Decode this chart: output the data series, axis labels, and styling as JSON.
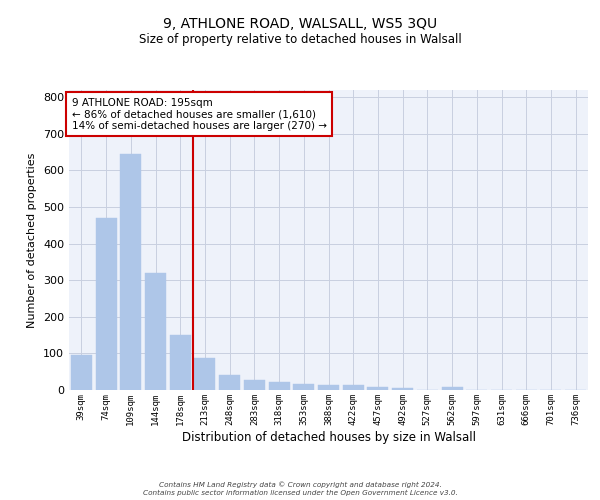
{
  "title1": "9, ATHLONE ROAD, WALSALL, WS5 3QU",
  "title2": "Size of property relative to detached houses in Walsall",
  "xlabel": "Distribution of detached houses by size in Walsall",
  "ylabel": "Number of detached properties",
  "categories": [
    "39sqm",
    "74sqm",
    "109sqm",
    "144sqm",
    "178sqm",
    "213sqm",
    "248sqm",
    "283sqm",
    "318sqm",
    "353sqm",
    "388sqm",
    "422sqm",
    "457sqm",
    "492sqm",
    "527sqm",
    "562sqm",
    "597sqm",
    "631sqm",
    "666sqm",
    "701sqm",
    "736sqm"
  ],
  "values": [
    95,
    470,
    645,
    320,
    150,
    88,
    40,
    27,
    22,
    17,
    14,
    14,
    8,
    6,
    0,
    8,
    0,
    0,
    0,
    0,
    0
  ],
  "bar_color": "#aec6e8",
  "bar_edge_color": "#aec6e8",
  "vline_x": 4.5,
  "vline_color": "#cc0000",
  "annotation_text": "9 ATHLONE ROAD: 195sqm\n← 86% of detached houses are smaller (1,610)\n14% of semi-detached houses are larger (270) →",
  "annotation_box_color": "white",
  "annotation_box_edge": "#cc0000",
  "ylim": [
    0,
    820
  ],
  "yticks": [
    0,
    100,
    200,
    300,
    400,
    500,
    600,
    700,
    800
  ],
  "footer_line1": "Contains HM Land Registry data © Crown copyright and database right 2024.",
  "footer_line2": "Contains public sector information licensed under the Open Government Licence v3.0.",
  "bg_color": "#eef2fa",
  "grid_color": "#c8cfe0"
}
